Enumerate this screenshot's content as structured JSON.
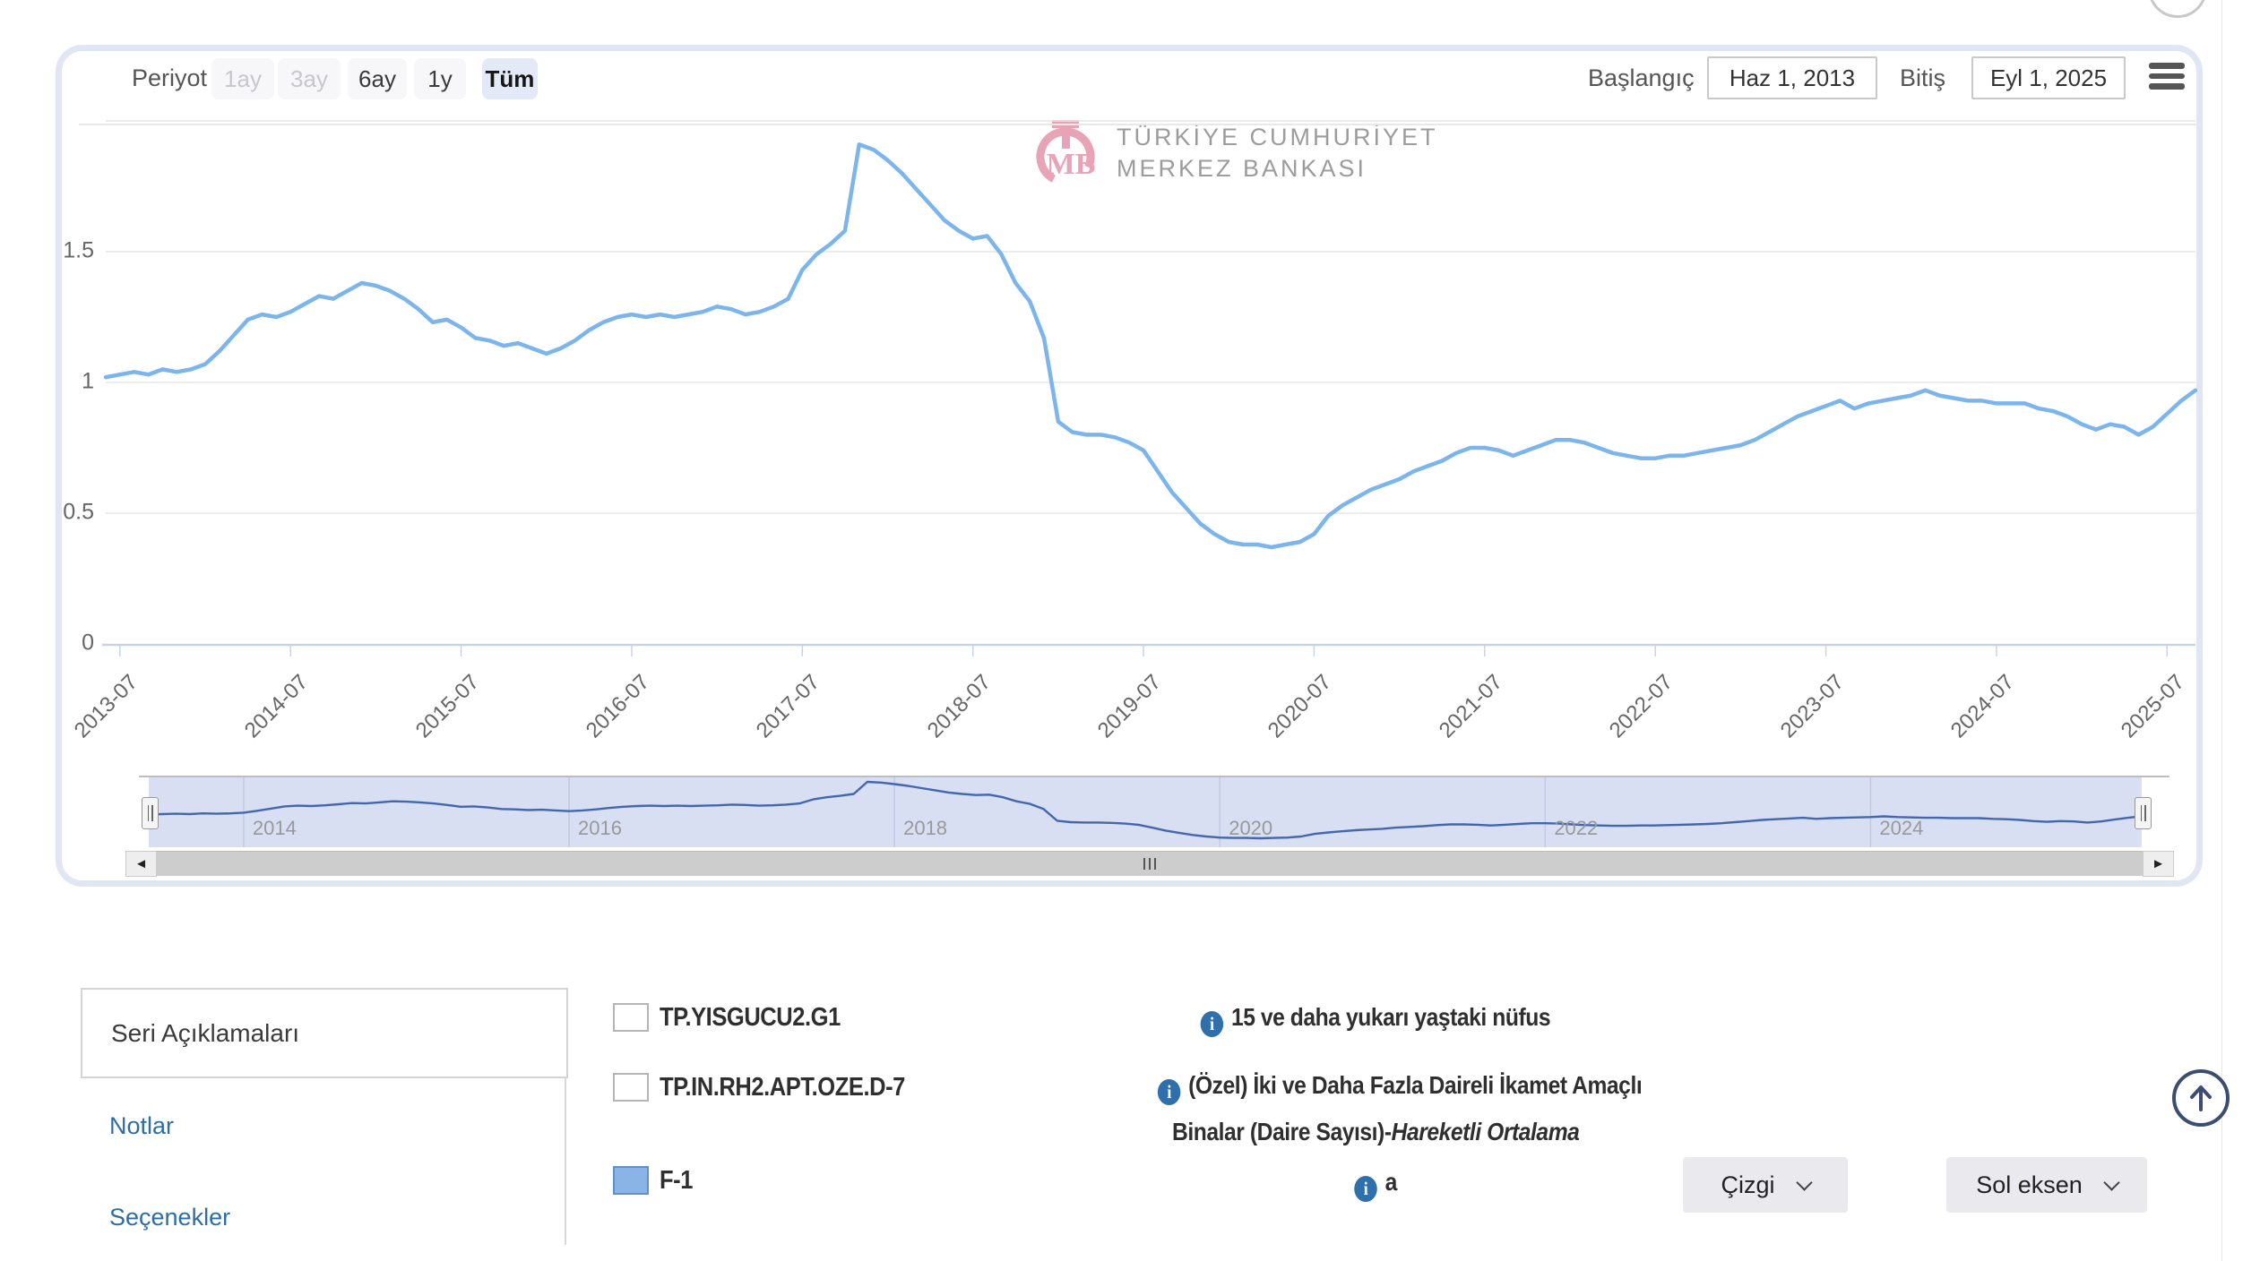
{
  "header": {
    "periyot_label": "Periyot",
    "periods": [
      {
        "label": "1ay",
        "state": "disabled"
      },
      {
        "label": "3ay",
        "state": "disabled"
      },
      {
        "label": "6ay",
        "state": "normal"
      },
      {
        "label": "1y",
        "state": "normal"
      },
      {
        "label": "Tüm",
        "state": "active"
      }
    ],
    "baslangic_label": "Başlangıç",
    "baslangic_value": "Haz 1, 2013",
    "bitis_label": "Bitiş",
    "bitis_value": "Eyl 1, 2025"
  },
  "watermark": {
    "line1": "TÜRKİYE CUMHURİYET",
    "line2": "MERKEZ BANKASI",
    "logo_letters": {
      "t": "T",
      "mb": "MB"
    }
  },
  "chart_data": {
    "type": "line",
    "x_start": "2013-06",
    "x_end": "2025-09",
    "frequency": "monthly",
    "x_ticks": [
      "2013-07",
      "2014-07",
      "2015-07",
      "2016-07",
      "2017-07",
      "2018-07",
      "2019-07",
      "2020-07",
      "2021-07",
      "2022-07",
      "2023-07",
      "2024-07",
      "2025-07"
    ],
    "y_axis_labels": [
      {
        "value": 2.0,
        "label": ""
      },
      {
        "value": 1.5,
        "label": "1.5"
      },
      {
        "value": 1.0,
        "label": "1"
      },
      {
        "value": 0.5,
        "label": "0.5"
      },
      {
        "value": 0.0,
        "label": "0"
      }
    ],
    "ylim": [
      0,
      2.0
    ],
    "grid": true,
    "line_color": "#7cb5ec",
    "series_name": "F-1",
    "values": [
      1.02,
      1.03,
      1.04,
      1.03,
      1.05,
      1.04,
      1.05,
      1.07,
      1.12,
      1.18,
      1.24,
      1.26,
      1.25,
      1.27,
      1.3,
      1.33,
      1.32,
      1.35,
      1.38,
      1.37,
      1.35,
      1.32,
      1.28,
      1.23,
      1.24,
      1.21,
      1.17,
      1.16,
      1.14,
      1.15,
      1.13,
      1.11,
      1.13,
      1.16,
      1.2,
      1.23,
      1.25,
      1.26,
      1.25,
      1.26,
      1.25,
      1.26,
      1.27,
      1.29,
      1.28,
      1.26,
      1.27,
      1.29,
      1.32,
      1.43,
      1.49,
      1.53,
      1.58,
      1.91,
      1.89,
      1.85,
      1.8,
      1.74,
      1.68,
      1.62,
      1.58,
      1.55,
      1.56,
      1.49,
      1.38,
      1.31,
      1.17,
      0.85,
      0.81,
      0.8,
      0.8,
      0.79,
      0.77,
      0.74,
      0.66,
      0.58,
      0.52,
      0.46,
      0.42,
      0.39,
      0.38,
      0.38,
      0.37,
      0.38,
      0.39,
      0.42,
      0.49,
      0.53,
      0.56,
      0.59,
      0.61,
      0.63,
      0.66,
      0.68,
      0.7,
      0.73,
      0.75,
      0.75,
      0.74,
      0.72,
      0.74,
      0.76,
      0.78,
      0.78,
      0.77,
      0.75,
      0.73,
      0.72,
      0.71,
      0.71,
      0.72,
      0.72,
      0.73,
      0.74,
      0.75,
      0.76,
      0.78,
      0.81,
      0.84,
      0.87,
      0.89,
      0.91,
      0.93,
      0.9,
      0.92,
      0.93,
      0.94,
      0.95,
      0.97,
      0.95,
      0.94,
      0.93,
      0.93,
      0.92,
      0.92,
      0.92,
      0.9,
      0.89,
      0.87,
      0.84,
      0.82,
      0.84,
      0.83,
      0.8,
      0.83,
      0.88,
      0.93,
      0.97
    ]
  },
  "navigator": {
    "years": [
      {
        "label": "2014",
        "month_index": 7
      },
      {
        "label": "2016",
        "month_index": 31
      },
      {
        "label": "2018",
        "month_index": 55
      },
      {
        "label": "2020",
        "month_index": 79
      },
      {
        "label": "2022",
        "month_index": 103
      },
      {
        "label": "2024",
        "month_index": 127
      }
    ],
    "mask_color": "#d8dff2",
    "line_color": "#4466ad"
  },
  "scrollbar": {
    "left_arrow": "◄",
    "right_arrow": "►"
  },
  "tabs": {
    "active": "Seri Açıklamaları",
    "links": [
      "Notlar",
      "Seçenekler"
    ]
  },
  "series": [
    {
      "code": "TP.YISGUCU2.G1",
      "checked": false,
      "info_icon": "i",
      "description": "15 ve daha yukarı yaştaki nüfus"
    },
    {
      "code": "TP.IN.RH2.APT.OZE.D-7",
      "checked": false,
      "info_icon": "i",
      "description_line1": "(Özel) İki ve Daha Fazla Daireli İkamet Amaçlı",
      "description_line2": "Binalar (Daire Sayısı)-",
      "description_line2_italic": "Hareketli Ortalama"
    },
    {
      "code": "F-1",
      "checked": true,
      "color": "#8ab4e6",
      "info_icon": "i",
      "description": "a",
      "chart_type_dropdown": "Çizgi",
      "axis_dropdown": "Sol eksen"
    }
  ]
}
